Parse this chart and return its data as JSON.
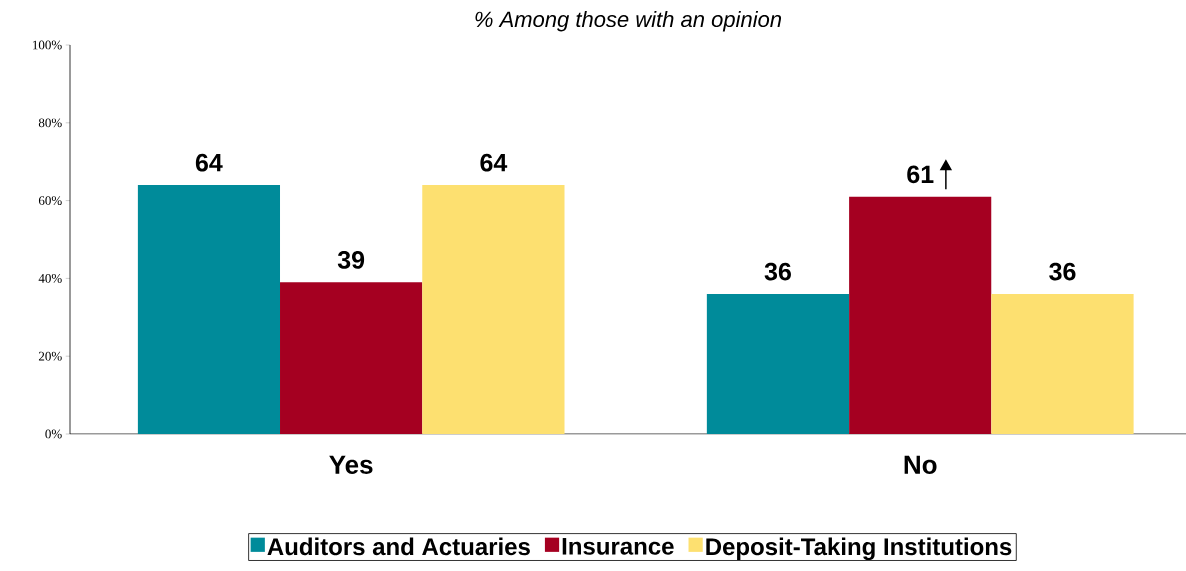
{
  "chart_data": {
    "type": "bar",
    "title": "% Among those with an opinion",
    "categories": [
      "Yes",
      "No"
    ],
    "series": [
      {
        "name": "Auditors and Actuaries",
        "color": "#008b9a",
        "values": [
          64,
          36
        ]
      },
      {
        "name": "Insurance",
        "color": "#a50021",
        "values": [
          39,
          61
        ]
      },
      {
        "name": "Deposit-Taking Institutions",
        "color": "#fde070",
        "values": [
          64,
          36
        ]
      }
    ],
    "ylim": [
      0,
      100
    ],
    "yticks": [
      {
        "value": 0,
        "label": "0%"
      },
      {
        "value": 20,
        "label": "20%"
      },
      {
        "value": 40,
        "label": "40%"
      },
      {
        "value": 60,
        "label": "60%"
      },
      {
        "value": 80,
        "label": "80%"
      },
      {
        "value": 100,
        "label": "100%"
      }
    ],
    "data_labels": true,
    "legend": "bottom",
    "grid": false
  }
}
